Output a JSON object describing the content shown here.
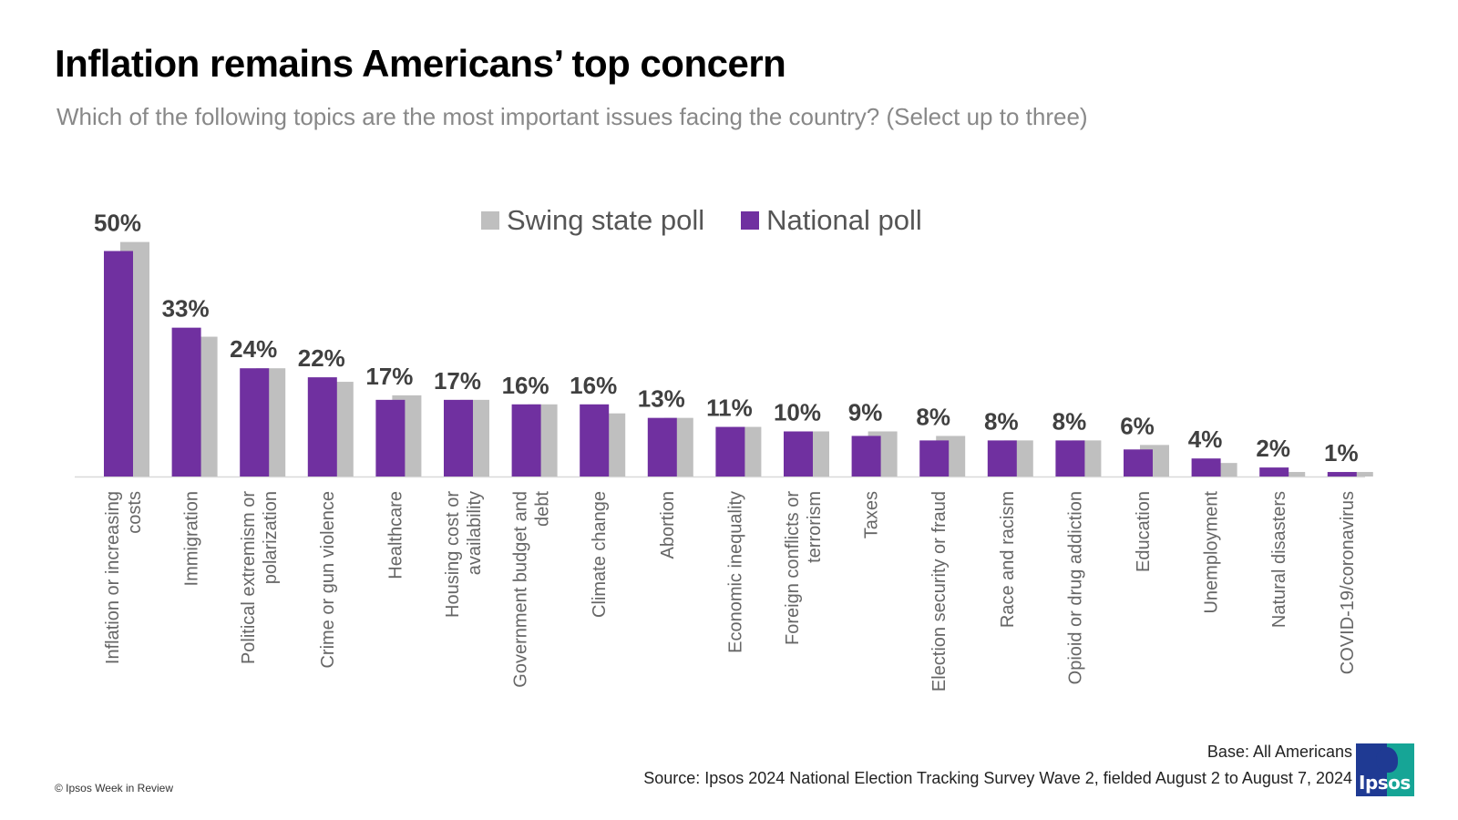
{
  "title": "Inflation remains Americans’ top concern",
  "subtitle": "Which of the following topics are the most important issues facing the country? (Select up to three)",
  "base": "Base: All Americans",
  "source": "Source: Ipsos 2024 National Election Tracking Survey Wave 2, fielded August 2 to August 7, 2024",
  "copyright": "© Ipsos Week in Review",
  "logo_text": "Ipsos",
  "colors": {
    "national": "#7030a0",
    "swing": "#bfbfbf",
    "axis": "#d9d9d9",
    "label": "#404040",
    "category": "#666666"
  },
  "chart_data": {
    "type": "bar",
    "legend_position": "top-center",
    "grid": false,
    "ylim": [
      0,
      55
    ],
    "categories": [
      "Inflation or increasing costs",
      "Immigration",
      "Political extremism or polarization",
      "Crime or gun violence",
      "Healthcare",
      "Housing cost or availability",
      "Government budget and debt",
      "Climate change",
      "Abortion",
      "Economic inequality",
      "Foreign conflicts or terrorism",
      "Taxes",
      "Election security or fraud",
      "Race and racism",
      "Opioid or drug addiction",
      "Education",
      "Unemployment",
      "Natural disasters",
      "COVID-19/coronavirus"
    ],
    "category_lines": [
      [
        "Inflation or increasing",
        "costs"
      ],
      [
        "Immigration"
      ],
      [
        "Political extremism or",
        "polarization"
      ],
      [
        "Crime or gun violence"
      ],
      [
        "Healthcare"
      ],
      [
        "Housing cost or",
        "availability"
      ],
      [
        "Government budget and",
        "debt"
      ],
      [
        "Climate change"
      ],
      [
        "Abortion"
      ],
      [
        "Economic inequality"
      ],
      [
        "Foreign conflicts or",
        "terrorism"
      ],
      [
        "Taxes"
      ],
      [
        "Election security or fraud"
      ],
      [
        "Race and racism"
      ],
      [
        "Opioid or drug addiction"
      ],
      [
        "Education"
      ],
      [
        "Unemployment"
      ],
      [
        "Natural disasters"
      ],
      [
        "COVID-19/coronavirus"
      ]
    ],
    "data_labels": [
      "50%",
      "33%",
      "24%",
      "22%",
      "17%",
      "17%",
      "16%",
      "16%",
      "13%",
      "11%",
      "10%",
      "9%",
      "8%",
      "8%",
      "8%",
      "6%",
      "4%",
      "2%",
      "1%"
    ],
    "series": [
      {
        "name": "Swing state poll",
        "values": [
          52,
          31,
          24,
          21,
          18,
          17,
          16,
          14,
          13,
          11,
          10,
          10,
          9,
          8,
          8,
          7,
          3,
          1,
          1
        ]
      },
      {
        "name": "National poll",
        "values": [
          50,
          33,
          24,
          22,
          17,
          17,
          16,
          16,
          13,
          11,
          10,
          9,
          8,
          8,
          8,
          6,
          4,
          2,
          1
        ]
      }
    ]
  }
}
